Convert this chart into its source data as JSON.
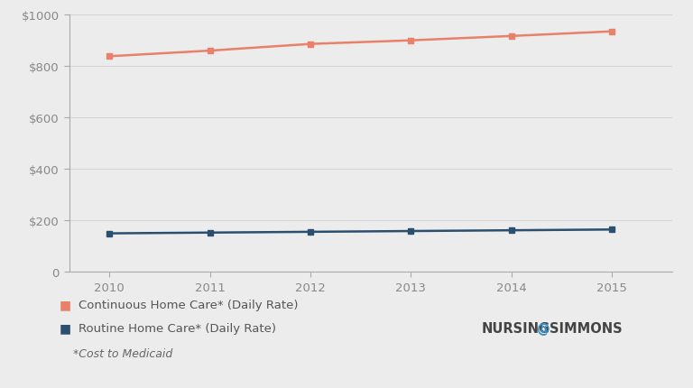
{
  "years": [
    2010,
    2011,
    2012,
    2013,
    2014,
    2015
  ],
  "continuous_home_care": [
    838,
    860,
    886,
    900,
    917,
    935
  ],
  "routine_home_care": [
    148,
    151,
    154,
    157,
    160,
    163
  ],
  "continuous_color": "#E8806A",
  "routine_color": "#2B4F6E",
  "background_color": "#EDECEC",
  "ylim": [
    0,
    1000
  ],
  "yticks": [
    0,
    200,
    400,
    600,
    800,
    1000
  ],
  "ytick_labels": [
    "0",
    "$200",
    "$400",
    "$600",
    "$800",
    "$1000"
  ],
  "legend_label_continuous": "Continuous Home Care* (Daily Rate)",
  "legend_label_routine": "Routine Home Care* (Daily Rate)",
  "footnote": "*Cost to Medicaid",
  "brand_text_nursing": "NURSING",
  "brand_text_at": "@",
  "brand_text_simmons": "SIMMONS",
  "brand_color_nursing": "#444444",
  "brand_color_at": "#3A8FC0",
  "brand_color_simmons": "#444444",
  "axis_color": "#AAAAAA",
  "tick_label_color": "#888888",
  "grid_color": "#D5D4D4"
}
